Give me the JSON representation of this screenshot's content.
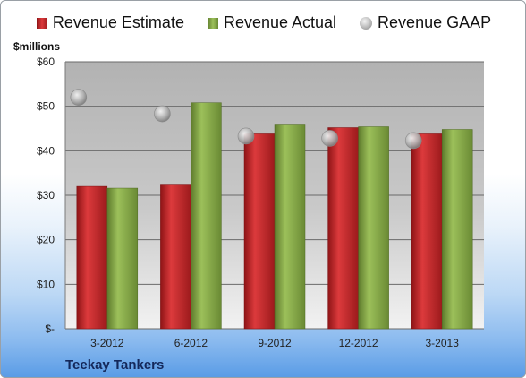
{
  "legend": {
    "estimate": "Revenue Estimate",
    "actual": "Revenue Actual",
    "gaap": "Revenue GAAP"
  },
  "unit_label": "$millions",
  "company_label": "Teekay Tankers",
  "colors": {
    "estimate": "#c8282c",
    "actual": "#8aab4e",
    "gaap": "#b4b4b4",
    "plot_top": "#b2b2b2",
    "plot_bottom": "#f2f2f2"
  },
  "chart_data": {
    "type": "bar",
    "categories": [
      "3-2012",
      "6-2012",
      "9-2012",
      "12-2012",
      "3-2013"
    ],
    "series": [
      {
        "name": "Revenue Estimate",
        "values": [
          32.0,
          32.5,
          43.8,
          45.2,
          43.8
        ]
      },
      {
        "name": "Revenue Actual",
        "values": [
          31.6,
          50.8,
          46.0,
          45.4,
          44.8
        ]
      },
      {
        "name": "Revenue GAAP",
        "render": "marker",
        "values": [
          52.0,
          48.3,
          43.3,
          42.8,
          42.3
        ]
      }
    ],
    "ylim": [
      0,
      60
    ],
    "yticks": [
      0,
      10,
      20,
      30,
      40,
      50,
      60
    ],
    "ytick_labels": [
      "$-",
      "$10",
      "$20",
      "$30",
      "$40",
      "$50",
      "$60"
    ],
    "legend_position": "top",
    "grid": true
  }
}
